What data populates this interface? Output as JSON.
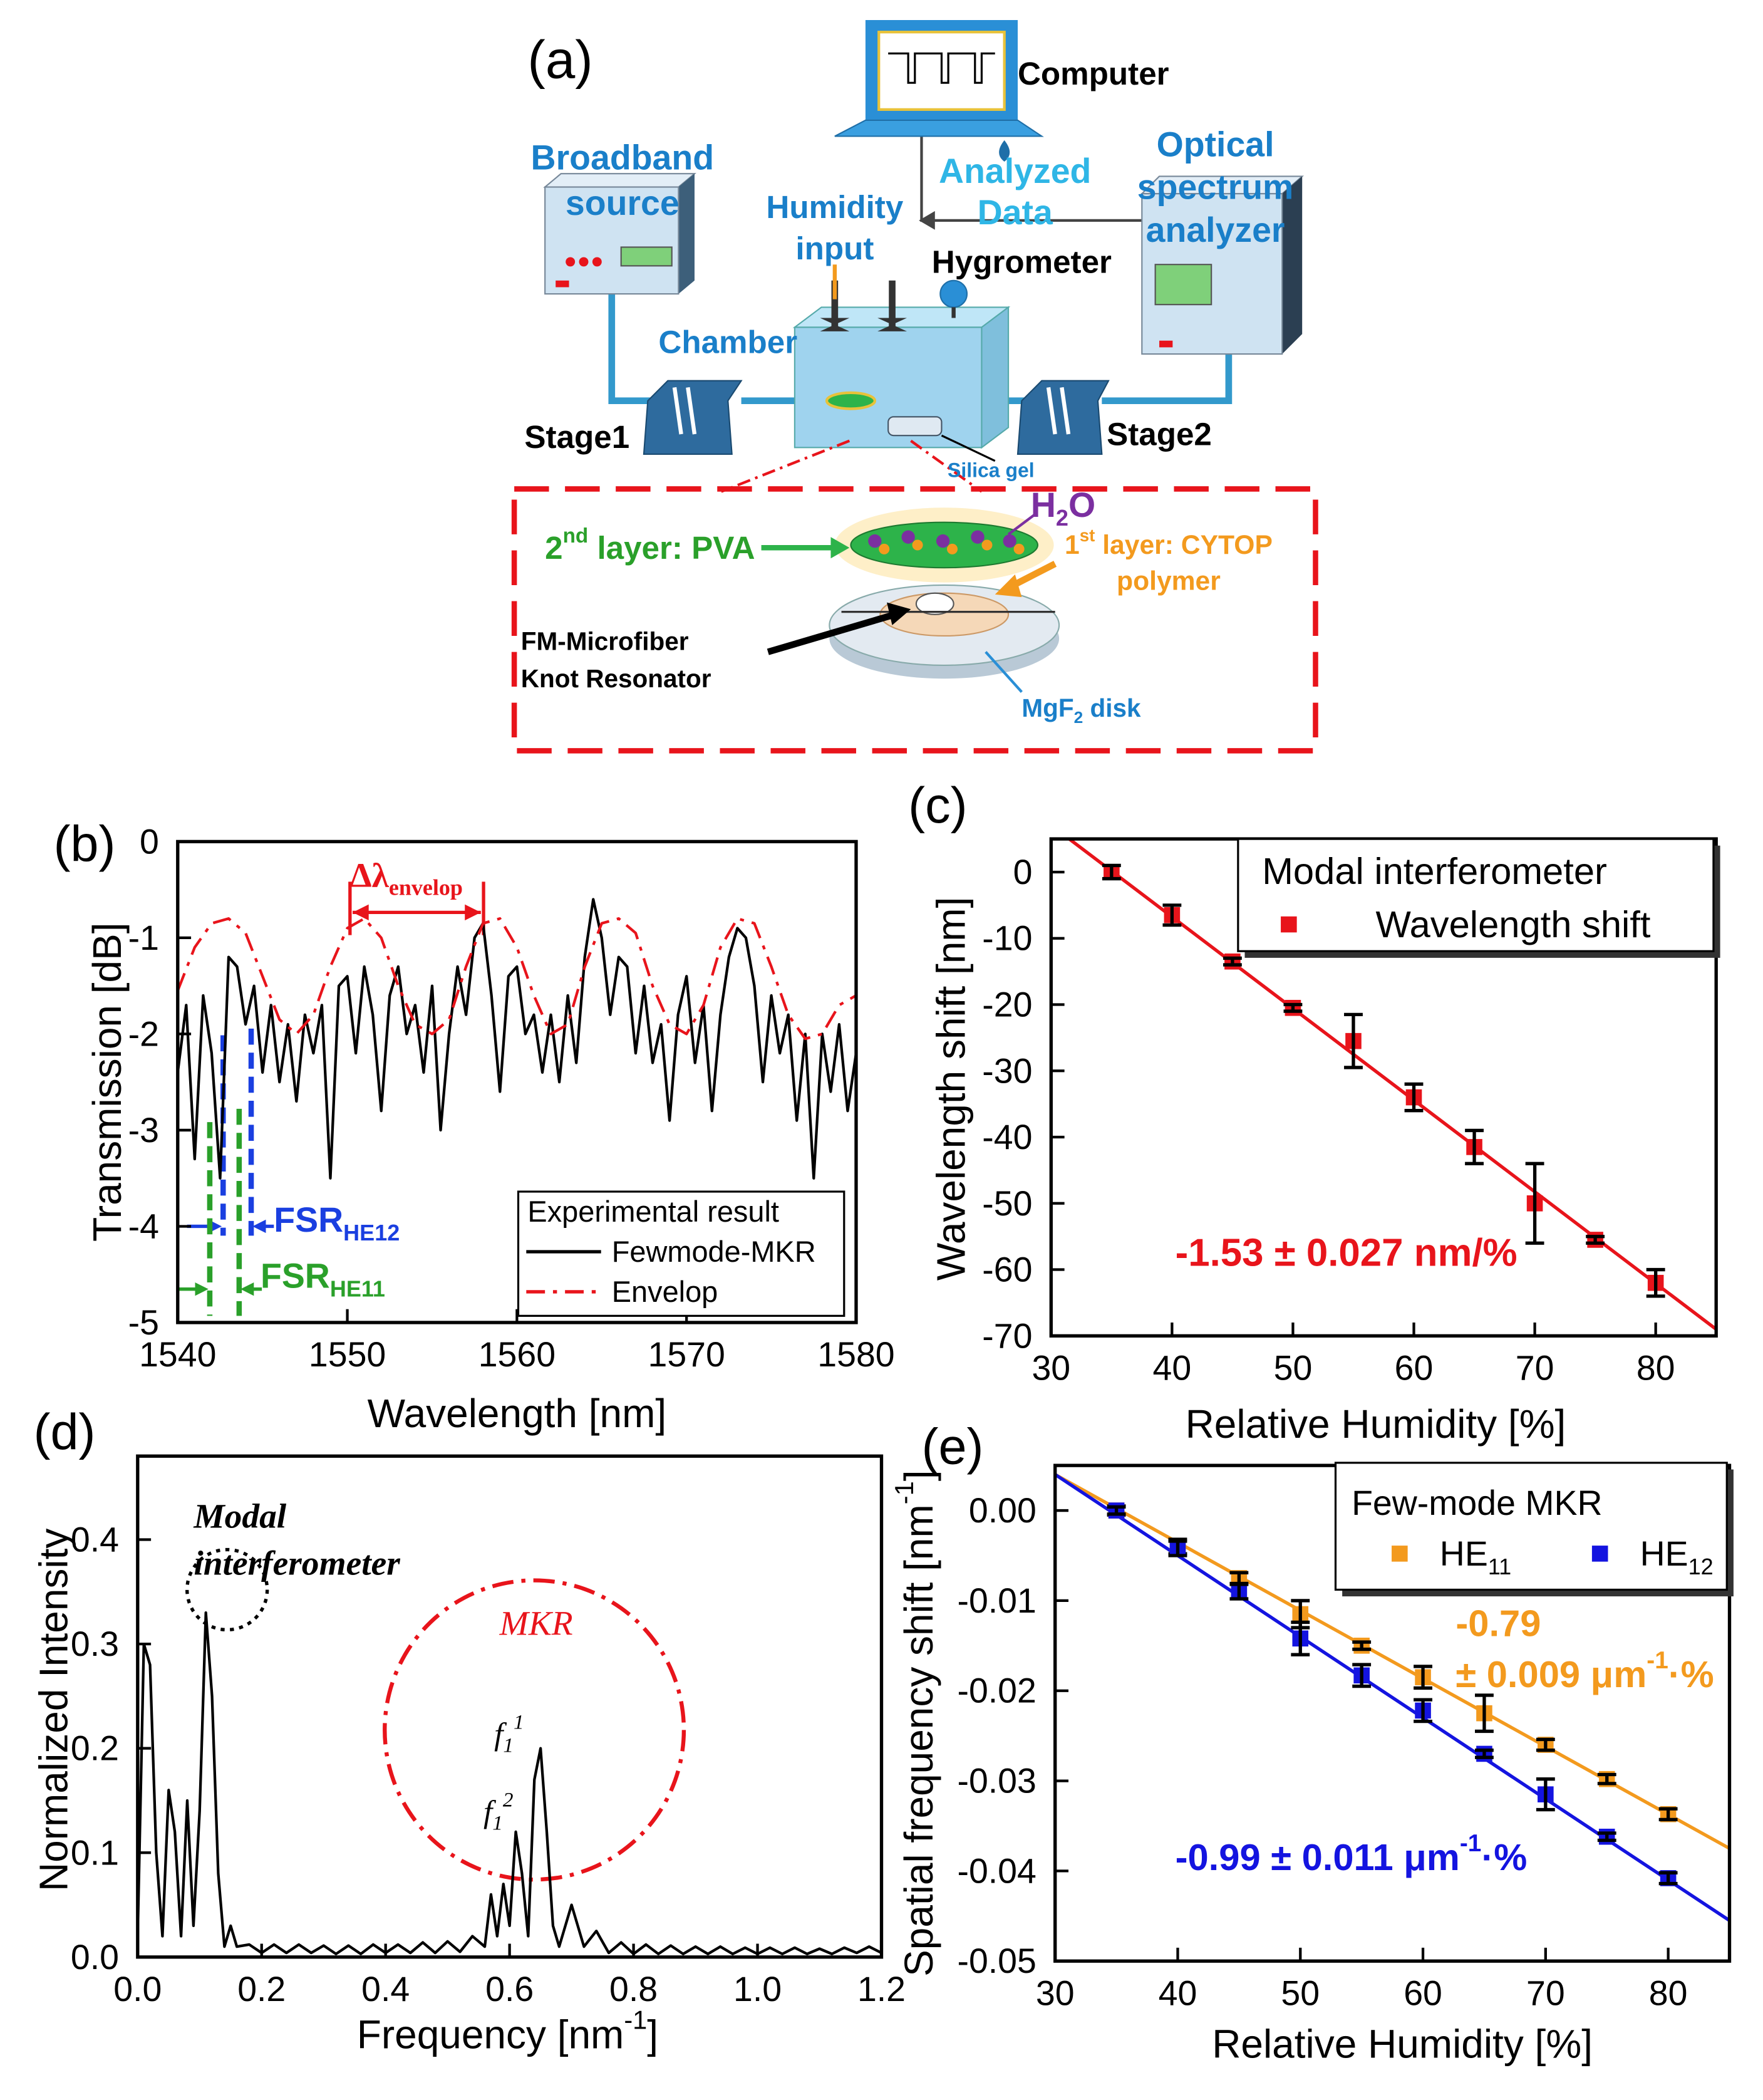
{
  "diagram": {
    "panel_label": "(a)",
    "labels": [
      {
        "lines": [
          "Computer"
        ]
      },
      {
        "lines": [
          "Broadband",
          "source"
        ]
      },
      {
        "lines": [
          "Analyzed",
          "Data"
        ]
      },
      {
        "lines": [
          "Optical",
          "spectrum",
          "analyzer"
        ]
      },
      {
        "lines": [
          "Humidity",
          "input"
        ]
      },
      {
        "lines": [
          "Hygrometer"
        ]
      },
      {
        "lines": [
          "Chamber"
        ]
      },
      {
        "lines": [
          "Stage1"
        ]
      },
      {
        "lines": [
          "Stage2"
        ]
      },
      {
        "lines": [
          "Silica gel"
        ]
      },
      {
        "lines": [
          [
            {
              "text": "H"
            },
            {
              "sub": "2"
            },
            {
              "text": "O"
            }
          ]
        ]
      },
      {
        "lines": [
          [
            {
              "text": "2"
            },
            {
              "sup": "nd"
            },
            {
              "text": " layer: PVA"
            }
          ]
        ]
      },
      {
        "lines": [
          [
            {
              "text": "1"
            },
            {
              "sup": "st"
            },
            {
              "text": " layer: CYTOP"
            }
          ],
          "polymer"
        ]
      },
      {
        "lines": [
          "FM-Microfiber",
          "Knot Resonator"
        ]
      },
      {
        "lines": [
          [
            {
              "text": "MgF"
            },
            {
              "sub": "2"
            },
            {
              "text": " disk"
            }
          ]
        ]
      }
    ]
  },
  "chart_data": [
    {
      "type": "line",
      "panel_label": "(b)",
      "xlabel": "Wavelength [nm]",
      "ylabel": "Transmission [dB]",
      "xlim": [
        1540,
        1580
      ],
      "ylim": [
        -5,
        0
      ],
      "xticks": [
        1540,
        1550,
        1560,
        1570,
        1580
      ],
      "yticks": [
        0,
        -1,
        -2,
        -3,
        -4,
        -5
      ],
      "legend_title": "Experimental result",
      "series": [
        {
          "name": "Fewmode-MKR",
          "mode": "line",
          "color": "#000000",
          "x": [
            1540,
            1540.5,
            1541,
            1541.5,
            1542,
            1542.5,
            1543,
            1543.5,
            1544,
            1544.5,
            1545,
            1545.5,
            1546,
            1546.5,
            1547,
            1547.5,
            1548,
            1548.5,
            1549,
            1549.5,
            1550,
            1550.5,
            1551,
            1551.5,
            1552,
            1552.5,
            1553,
            1553.5,
            1554,
            1554.5,
            1555,
            1555.5,
            1556,
            1556.5,
            1557,
            1557.5,
            1558,
            1558.5,
            1559,
            1559.5,
            1560,
            1560.5,
            1561,
            1561.5,
            1562,
            1562.5,
            1563,
            1563.5,
            1564,
            1564.5,
            1565,
            1565.5,
            1566,
            1566.5,
            1567,
            1567.5,
            1568,
            1568.5,
            1569,
            1569.5,
            1570,
            1570.5,
            1571,
            1571.5,
            1572,
            1572.5,
            1573,
            1573.5,
            1574,
            1574.5,
            1575,
            1575.5,
            1576,
            1576.5,
            1577,
            1577.5,
            1578,
            1578.5,
            1579,
            1579.5,
            1580
          ],
          "values": [
            -2.4,
            -1.7,
            -3.3,
            -1.6,
            -2.2,
            -3.5,
            -1.2,
            -1.3,
            -1.9,
            -1.5,
            -2.4,
            -1.7,
            -2.5,
            -1.9,
            -2.7,
            -1.8,
            -2.2,
            -1.7,
            -3.5,
            -1.5,
            -1.4,
            -2.2,
            -1.3,
            -1.8,
            -2.8,
            -1.6,
            -1.3,
            -2.0,
            -1.7,
            -2.4,
            -1.5,
            -3.0,
            -2.0,
            -1.3,
            -1.8,
            -1.0,
            -0.85,
            -1.6,
            -2.6,
            -1.4,
            -1.3,
            -2.0,
            -1.8,
            -2.4,
            -1.8,
            -2.5,
            -1.6,
            -2.3,
            -1.2,
            -0.6,
            -1.0,
            -1.8,
            -1.2,
            -1.3,
            -2.2,
            -1.5,
            -2.3,
            -1.9,
            -2.9,
            -1.8,
            -1.4,
            -2.3,
            -1.7,
            -2.8,
            -1.8,
            -1.2,
            -0.9,
            -1.0,
            -1.5,
            -2.5,
            -1.6,
            -2.2,
            -1.8,
            -2.9,
            -2.0,
            -3.5,
            -2.0,
            -2.6,
            -1.9,
            -2.8,
            -2.2
          ]
        },
        {
          "name": "Envelop",
          "mode": "line",
          "dash": "dashdot",
          "color": "#e8141b",
          "x": [
            1540,
            1541,
            1542,
            1543,
            1544,
            1545,
            1546,
            1547,
            1548,
            1549,
            1550,
            1551,
            1552,
            1553,
            1554,
            1555,
            1556,
            1557,
            1558,
            1559,
            1560,
            1561,
            1562,
            1563,
            1564,
            1565,
            1566,
            1567,
            1568,
            1569,
            1570,
            1571,
            1572,
            1573,
            1574,
            1575,
            1576,
            1577,
            1578,
            1579,
            1580
          ],
          "values": [
            -1.55,
            -1.1,
            -0.85,
            -0.8,
            -0.95,
            -1.4,
            -1.85,
            -2.0,
            -1.8,
            -1.3,
            -0.9,
            -0.8,
            -1.0,
            -1.5,
            -1.9,
            -2.0,
            -1.85,
            -1.3,
            -0.85,
            -0.8,
            -1.1,
            -1.6,
            -2.0,
            -1.9,
            -1.3,
            -0.85,
            -0.8,
            -0.95,
            -1.5,
            -1.9,
            -2.0,
            -1.7,
            -1.1,
            -0.8,
            -0.85,
            -1.3,
            -1.8,
            -2.05,
            -2.0,
            -1.7,
            -1.6
          ]
        }
      ],
      "annotations": [
        [
          {
            "text": "Δλ"
          },
          {
            "sub": "envelop"
          }
        ],
        [
          {
            "text": "FSR"
          },
          {
            "sub": "HE12"
          }
        ],
        [
          {
            "text": "FSR"
          },
          {
            "sub": "HE11"
          }
        ]
      ]
    },
    {
      "type": "scatter",
      "panel_label": "(c)",
      "xlabel": "Relative Humidity [%]",
      "ylabel": "Wavelength shift [nm]",
      "xlim": [
        30,
        85
      ],
      "ylim": [
        -70,
        5
      ],
      "xticks": [
        30,
        40,
        50,
        60,
        70,
        80
      ],
      "yticks": [
        0,
        -10,
        -20,
        -30,
        -40,
        -50,
        -60,
        -70
      ],
      "legend_title": "Modal interferometer",
      "error_color": "#000000",
      "series": [
        {
          "name": "Wavelength shift",
          "mode": "markers",
          "color": "#e8141b",
          "x": [
            35,
            40,
            45,
            50,
            55,
            60,
            65,
            70,
            75,
            80
          ],
          "values": [
            0,
            -6.5,
            -13.5,
            -20.5,
            -25.5,
            -34,
            -41.5,
            -50,
            -55.5,
            -62
          ],
          "errors": [
            1,
            1.5,
            0.5,
            0.5,
            4,
            2,
            2.5,
            6,
            0.5,
            2
          ]
        },
        {
          "mode": "line",
          "color": "#e8141b",
          "x": [
            31.5,
            85
          ],
          "values": [
            5,
            -69
          ]
        }
      ],
      "annotations": [
        "-1.53 ± 0.027 nm/%"
      ]
    },
    {
      "type": "line",
      "panel_label": "(d)",
      "xlabel": [
        {
          "text": "Frequency [nm"
        },
        {
          "sup": "-1"
        },
        {
          "text": "]"
        }
      ],
      "ylabel": "Normalized Intensity",
      "xlim": [
        0,
        1.2
      ],
      "ylim": [
        0,
        0.48
      ],
      "xticks": [
        {
          "value": 0,
          "label": "0.0"
        },
        0.2,
        0.4,
        0.6,
        0.8,
        {
          "value": 1,
          "label": "1.0"
        },
        1.2
      ],
      "yticks": [
        {
          "value": 0,
          "label": "0.0"
        },
        0.1,
        0.2,
        0.3,
        0.4
      ],
      "series": [
        {
          "mode": "line",
          "color": "#000000",
          "x": [
            0,
            0.01,
            0.02,
            0.03,
            0.04,
            0.05,
            0.06,
            0.07,
            0.08,
            0.09,
            0.1,
            0.11,
            0.12,
            0.13,
            0.14,
            0.15,
            0.16,
            0.18,
            0.2,
            0.22,
            0.24,
            0.26,
            0.28,
            0.3,
            0.32,
            0.34,
            0.36,
            0.38,
            0.4,
            0.42,
            0.44,
            0.46,
            0.48,
            0.5,
            0.52,
            0.54,
            0.56,
            0.57,
            0.58,
            0.59,
            0.6,
            0.61,
            0.62,
            0.63,
            0.64,
            0.65,
            0.66,
            0.67,
            0.68,
            0.7,
            0.72,
            0.74,
            0.76,
            0.78,
            0.8,
            0.82,
            0.84,
            0.86,
            0.88,
            0.9,
            0.92,
            0.94,
            0.96,
            0.98,
            1,
            1.02,
            1.04,
            1.06,
            1.08,
            1.1,
            1.12,
            1.14,
            1.16,
            1.18,
            1.2
          ],
          "values": [
            0.02,
            0.3,
            0.28,
            0.1,
            0.02,
            0.16,
            0.12,
            0.02,
            0.15,
            0.03,
            0.14,
            0.33,
            0.25,
            0.08,
            0.01,
            0.03,
            0.01,
            0.012,
            0.004,
            0.012,
            0.004,
            0.012,
            0.004,
            0.011,
            0.003,
            0.011,
            0.003,
            0.012,
            0.004,
            0.012,
            0.004,
            0.014,
            0.004,
            0.015,
            0.005,
            0.02,
            0.01,
            0.06,
            0.02,
            0.07,
            0.03,
            0.12,
            0.08,
            0.02,
            0.17,
            0.2,
            0.12,
            0.03,
            0.01,
            0.05,
            0.01,
            0.025,
            0.004,
            0.014,
            0.003,
            0.012,
            0.003,
            0.011,
            0.003,
            0.01,
            0.003,
            0.01,
            0.003,
            0.009,
            0.003,
            0.009,
            0.003,
            0.009,
            0.003,
            0.008,
            0.003,
            0.009,
            0.004,
            0.01,
            0.004
          ]
        }
      ],
      "annotations": [
        "Modal",
        "interferometer",
        "MKR",
        [
          {
            "text": "f"
          },
          {
            "sub": "1"
          },
          {
            "sup": "1"
          }
        ],
        [
          {
            "text": "f"
          },
          {
            "sub": "1"
          },
          {
            "sup": "2"
          }
        ]
      ]
    },
    {
      "type": "scatter",
      "panel_label": "(e)",
      "xlabel": "Relative Humidity [%]",
      "ylabel": [
        {
          "text": "Spatial frequency shift [nm"
        },
        {
          "sup": "-1"
        },
        {
          "text": "]"
        }
      ],
      "xlim": [
        30,
        85
      ],
      "ylim": [
        -0.05,
        0.005
      ],
      "xticks": [
        30,
        40,
        50,
        60,
        70,
        80
      ],
      "yticks": [
        {
          "value": 0,
          "label": "0.00"
        },
        -0.01,
        -0.02,
        -0.03,
        -0.04,
        -0.05
      ],
      "legend_title": "Few-mode MKR",
      "error_color": "#000000",
      "series": [
        {
          "name": [
            {
              "text": "HE"
            },
            {
              "sub": "11"
            }
          ],
          "mode": "markers",
          "color": "#f39a1e",
          "x": [
            35,
            40,
            45,
            50,
            55,
            60,
            65,
            70,
            75,
            80
          ],
          "values": [
            0,
            -0.004,
            -0.0075,
            -0.0115,
            -0.015,
            -0.0185,
            -0.0225,
            -0.026,
            -0.0298,
            -0.0337
          ],
          "errors": [
            0.0005,
            0.0008,
            0.0006,
            0.0015,
            0.0004,
            0.0012,
            0.002,
            0.0006,
            0.0005,
            0.0006
          ]
        },
        {
          "name": [
            {
              "text": "HE"
            },
            {
              "sub": "12"
            }
          ],
          "mode": "markers",
          "color": "#1414e0",
          "x": [
            35,
            40,
            45,
            50,
            55,
            60,
            65,
            70,
            75,
            80
          ],
          "values": [
            0,
            -0.0042,
            -0.009,
            -0.0142,
            -0.0183,
            -0.0222,
            -0.027,
            -0.0315,
            -0.0362,
            -0.0408
          ],
          "errors": [
            0.0004,
            0.0008,
            0.0008,
            0.0018,
            0.0012,
            0.0012,
            0.0004,
            0.0017,
            0.0004,
            0.0006
          ]
        },
        {
          "mode": "line",
          "color": "#f39a1e",
          "x": [
            30,
            85
          ],
          "values": [
            0.004,
            -0.0375
          ]
        },
        {
          "mode": "line",
          "color": "#1414e0",
          "x": [
            30,
            85
          ],
          "values": [
            0.004,
            -0.0455
          ]
        }
      ],
      "annotations": [
        "-0.79",
        [
          {
            "text": "± 0.009 μm"
          },
          {
            "sup": "-1"
          },
          {
            "text": "·%"
          }
        ],
        [
          {
            "text": "-0.99 ± 0.011 μm"
          },
          {
            "sup": "-1"
          },
          {
            "text": "·%"
          }
        ]
      ]
    }
  ]
}
